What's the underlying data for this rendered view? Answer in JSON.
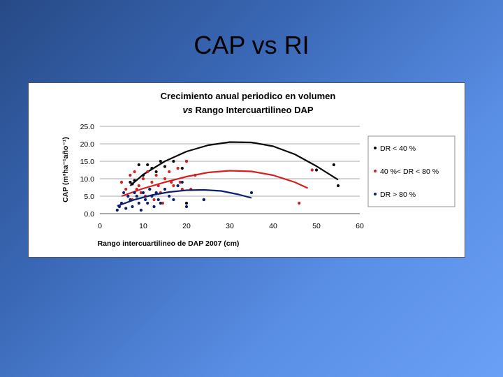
{
  "slide": {
    "title": "CAP vs RI"
  },
  "chart_data": {
    "type": "scatter",
    "title_line1": "Crecimiento anual periodico en volumen",
    "title_line2_prefix": "vs",
    "title_line2_rest": " Rango Intercuartilineo DAP",
    "xlabel": "Rango intercuartilineo de DAP 2007 (cm)",
    "ylabel": "CAP (m³ha⁻¹año⁻¹)",
    "xlim": [
      0,
      60
    ],
    "ylim": [
      0,
      25
    ],
    "x_ticks": [
      "0",
      "10",
      "20",
      "30",
      "40",
      "50",
      "60"
    ],
    "y_ticks": [
      "0.0",
      "5.0",
      "10.0",
      "15.0",
      "20.0",
      "25.0"
    ],
    "grid": "horizontal",
    "legend_position": "right",
    "series": [
      {
        "name": "DR < 40 %",
        "color": "#0a0a0a",
        "points": [
          [
            7,
            9
          ],
          [
            7.5,
            8.5
          ],
          [
            8,
            9.5
          ],
          [
            9,
            14
          ],
          [
            10,
            11
          ],
          [
            11,
            14
          ],
          [
            12,
            13
          ],
          [
            13,
            12
          ],
          [
            14,
            15
          ],
          [
            15,
            13.5
          ],
          [
            17,
            15
          ],
          [
            19,
            13
          ],
          [
            20,
            3
          ],
          [
            20,
            15
          ],
          [
            24,
            4
          ],
          [
            50,
            12.5
          ],
          [
            54,
            14
          ],
          [
            55,
            8
          ]
        ],
        "trend": [
          [
            7,
            8
          ],
          [
            10,
            11.2
          ],
          [
            15,
            15
          ],
          [
            20,
            17.8
          ],
          [
            25,
            19.6
          ],
          [
            30,
            20.5
          ],
          [
            35,
            20.4
          ],
          [
            40,
            19.3
          ],
          [
            45,
            17
          ],
          [
            50,
            13.6
          ],
          [
            55,
            9.7
          ]
        ]
      },
      {
        "name": "40 %< DR < 80 %",
        "color": "#d62020",
        "points": [
          [
            5,
            9
          ],
          [
            6,
            7
          ],
          [
            6.5,
            5
          ],
          [
            7,
            11
          ],
          [
            7.5,
            4
          ],
          [
            8,
            12
          ],
          [
            8.5,
            7
          ],
          [
            9,
            8
          ],
          [
            9.5,
            6
          ],
          [
            10,
            10
          ],
          [
            10.5,
            5
          ],
          [
            11,
            12
          ],
          [
            11.5,
            7
          ],
          [
            12,
            9
          ],
          [
            12.5,
            4
          ],
          [
            13,
            11
          ],
          [
            13.5,
            8
          ],
          [
            14,
            6
          ],
          [
            14.5,
            3
          ],
          [
            15,
            10
          ],
          [
            16,
            12
          ],
          [
            16.5,
            9
          ],
          [
            17,
            8
          ],
          [
            18,
            13
          ],
          [
            18.5,
            9
          ],
          [
            19,
            7
          ],
          [
            20,
            15
          ],
          [
            21,
            7
          ],
          [
            22,
            11
          ],
          [
            46,
            3
          ],
          [
            49,
            12.5
          ]
        ],
        "trend": [
          [
            5,
            5
          ],
          [
            10,
            7.2
          ],
          [
            15,
            9
          ],
          [
            20,
            10.6
          ],
          [
            25,
            11.8
          ],
          [
            30,
            12.3
          ],
          [
            35,
            12.1
          ],
          [
            40,
            11
          ],
          [
            45,
            9
          ],
          [
            48,
            7.3
          ]
        ]
      },
      {
        "name": "DR > 80 %",
        "color": "#0b1f6e",
        "points": [
          [
            4,
            1
          ],
          [
            4.5,
            2
          ],
          [
            5,
            3
          ],
          [
            5.5,
            6
          ],
          [
            6,
            1.5
          ],
          [
            6.5,
            5
          ],
          [
            7,
            4
          ],
          [
            7.5,
            2
          ],
          [
            8,
            6
          ],
          [
            8.5,
            5
          ],
          [
            9,
            3
          ],
          [
            9.5,
            1
          ],
          [
            10,
            6
          ],
          [
            10.5,
            4
          ],
          [
            11,
            3
          ],
          [
            11.5,
            7
          ],
          [
            12,
            5
          ],
          [
            12.5,
            2
          ],
          [
            13,
            6
          ],
          [
            13.5,
            4
          ],
          [
            14,
            3
          ],
          [
            15,
            7
          ],
          [
            16,
            5
          ],
          [
            17,
            4
          ],
          [
            18,
            8
          ],
          [
            19,
            9
          ],
          [
            20,
            2
          ],
          [
            24,
            4
          ],
          [
            35,
            6
          ]
        ],
        "trend": [
          [
            4,
            2.2
          ],
          [
            8,
            4
          ],
          [
            12,
            5.3
          ],
          [
            16,
            6.2
          ],
          [
            20,
            6.7
          ],
          [
            24,
            6.8
          ],
          [
            28,
            6.5
          ],
          [
            32,
            5.5
          ],
          [
            35,
            4.5
          ]
        ]
      }
    ]
  }
}
